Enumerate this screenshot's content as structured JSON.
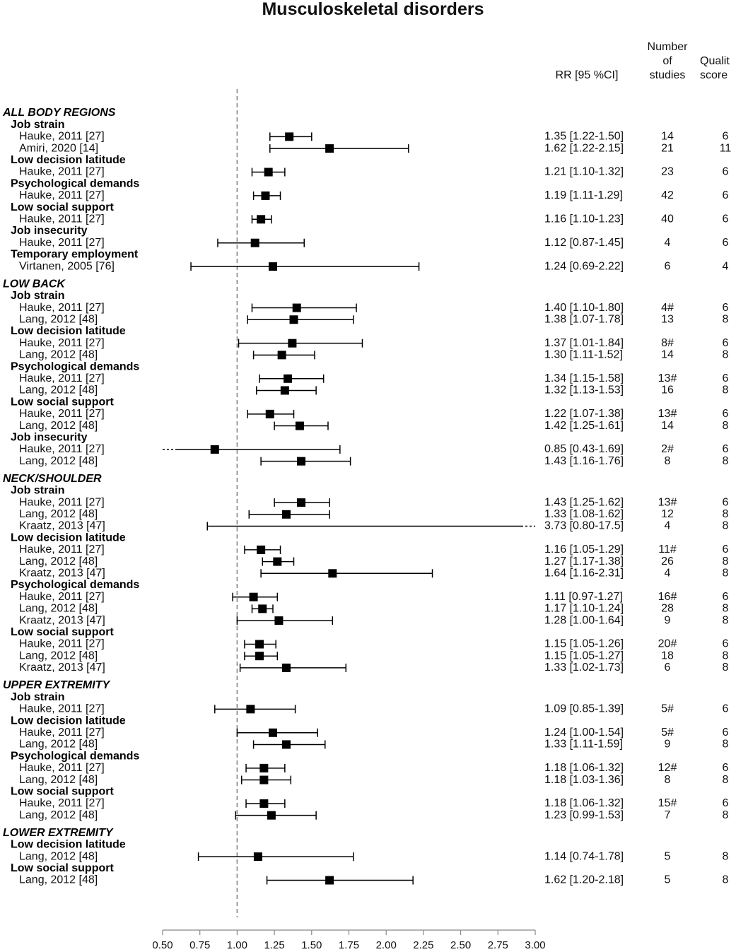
{
  "chart_data": {
    "type": "forest",
    "title": "Musculoskeletal disorders",
    "column_headers": {
      "rr": "RR [95 %CI]",
      "studies": [
        "Number",
        "of",
        "studies"
      ],
      "quality": [
        "Qualit",
        "score"
      ]
    },
    "reference_line": 1.0,
    "xlim": [
      0.5,
      3.0
    ],
    "x_ticks": [
      "0.50",
      "0.75",
      "1.00",
      "1.25",
      "1.50",
      "1.75",
      "2.00",
      "2.25",
      "2.50",
      "2.75",
      "3.00"
    ],
    "rows": [
      {
        "kind": "section",
        "label": "ALL BODY REGIONS"
      },
      {
        "kind": "group",
        "label": "Job strain"
      },
      {
        "kind": "study",
        "label": "Hauke, 2011 [27]",
        "rr": 1.35,
        "lo": 1.22,
        "hi": 1.5,
        "ci_text": "1.35 [1.22-1.50]",
        "n": "14",
        "q": "6"
      },
      {
        "kind": "study",
        "label": "Amiri, 2020 [14]",
        "rr": 1.62,
        "lo": 1.22,
        "hi": 2.15,
        "ci_text": "1.62 [1.22-2.15]",
        "n": "21",
        "q": "11"
      },
      {
        "kind": "group",
        "label": "Low decision latitude"
      },
      {
        "kind": "study",
        "label": "Hauke, 2011 [27]",
        "rr": 1.21,
        "lo": 1.1,
        "hi": 1.32,
        "ci_text": "1.21 [1.10-1.32]",
        "n": "23",
        "q": "6"
      },
      {
        "kind": "group",
        "label": "Psychological demands"
      },
      {
        "kind": "study",
        "label": "Hauke, 2011 [27]",
        "rr": 1.19,
        "lo": 1.11,
        "hi": 1.29,
        "ci_text": "1.19 [1.11-1.29]",
        "n": "42",
        "q": "6"
      },
      {
        "kind": "group",
        "label": "Low social support"
      },
      {
        "kind": "study",
        "label": "Hauke, 2011 [27]",
        "rr": 1.16,
        "lo": 1.1,
        "hi": 1.23,
        "ci_text": "1.16 [1.10-1.23]",
        "n": "40",
        "q": "6"
      },
      {
        "kind": "group",
        "label": "Job insecurity"
      },
      {
        "kind": "study",
        "label": "Hauke, 2011 [27]",
        "rr": 1.12,
        "lo": 0.87,
        "hi": 1.45,
        "ci_text": "1.12 [0.87-1.45]",
        "n": "4",
        "q": "6"
      },
      {
        "kind": "group",
        "label": "Temporary employment"
      },
      {
        "kind": "study",
        "label": "Virtanen, 2005 [76]",
        "rr": 1.24,
        "lo": 0.69,
        "hi": 2.22,
        "ci_text": "1.24 [0.69-2.22]",
        "n": "6",
        "q": "4"
      },
      {
        "kind": "section",
        "label": "LOW BACK"
      },
      {
        "kind": "group",
        "label": "Job strain"
      },
      {
        "kind": "study",
        "label": "Hauke, 2011 [27]",
        "rr": 1.4,
        "lo": 1.1,
        "hi": 1.8,
        "ci_text": "1.40 [1.10-1.80]",
        "n": "4#",
        "q": "6"
      },
      {
        "kind": "study",
        "label": "Lang, 2012 [48]",
        "rr": 1.38,
        "lo": 1.07,
        "hi": 1.78,
        "ci_text": "1.38 [1.07-1.78]",
        "n": "13",
        "q": "8"
      },
      {
        "kind": "group",
        "label": "Low decision latitude"
      },
      {
        "kind": "study",
        "label": "Hauke, 2011 [27]",
        "rr": 1.37,
        "lo": 1.01,
        "hi": 1.84,
        "ci_text": "1.37 [1.01-1.84]",
        "n": "8#",
        "q": "6"
      },
      {
        "kind": "study",
        "label": "Lang, 2012 [48]",
        "rr": 1.3,
        "lo": 1.11,
        "hi": 1.52,
        "ci_text": "1.30 [1.11-1.52]",
        "n": "14",
        "q": "8"
      },
      {
        "kind": "group",
        "label": "Psychological demands"
      },
      {
        "kind": "study",
        "label": "Hauke, 2011 [27]",
        "rr": 1.34,
        "lo": 1.15,
        "hi": 1.58,
        "ci_text": "1.34 [1.15-1.58]",
        "n": "13#",
        "q": "6"
      },
      {
        "kind": "study",
        "label": "Lang, 2012 [48]",
        "rr": 1.32,
        "lo": 1.13,
        "hi": 1.53,
        "ci_text": "1.32 [1.13-1.53]",
        "n": "16",
        "q": "8"
      },
      {
        "kind": "group",
        "label": "Low social support"
      },
      {
        "kind": "study",
        "label": "Hauke, 2011 [27]",
        "rr": 1.22,
        "lo": 1.07,
        "hi": 1.38,
        "ci_text": "1.22 [1.07-1.38]",
        "n": "13#",
        "q": "6"
      },
      {
        "kind": "study",
        "label": "Lang, 2012 [48]",
        "rr": 1.42,
        "lo": 1.25,
        "hi": 1.61,
        "ci_text": "1.42 [1.25-1.61]",
        "n": "14",
        "q": "8"
      },
      {
        "kind": "group",
        "label": "Job insecurity"
      },
      {
        "kind": "study",
        "label": "Hauke, 2011 [27]",
        "rr": 0.85,
        "lo": 0.43,
        "hi": 1.69,
        "ci_text": "0.85 [0.43-1.69]",
        "n": "2#",
        "q": "6"
      },
      {
        "kind": "study",
        "label": "Lang, 2012 [48]",
        "rr": 1.43,
        "lo": 1.16,
        "hi": 1.76,
        "ci_text": "1.43 [1.16-1.76]",
        "n": "8",
        "q": "8"
      },
      {
        "kind": "section",
        "label": "NECK/SHOULDER"
      },
      {
        "kind": "group",
        "label": "Job strain"
      },
      {
        "kind": "study",
        "label": "Hauke, 2011 [27]",
        "rr": 1.43,
        "lo": 1.25,
        "hi": 1.62,
        "ci_text": "1.43 [1.25-1.62]",
        "n": "13#",
        "q": "6"
      },
      {
        "kind": "study",
        "label": "Lang, 2012 [48]",
        "rr": 1.33,
        "lo": 1.08,
        "hi": 1.62,
        "ci_text": "1.33 [1.08-1.62]",
        "n": "12",
        "q": "8"
      },
      {
        "kind": "study",
        "label": "Kraatz, 2013 [47]",
        "rr": 3.73,
        "lo": 0.8,
        "hi": 17.5,
        "ci_text": "3.73 [0.80-17.5]",
        "n": "4",
        "q": "8"
      },
      {
        "kind": "group",
        "label": "Low decision latitude"
      },
      {
        "kind": "study",
        "label": "Hauke, 2011 [27]",
        "rr": 1.16,
        "lo": 1.05,
        "hi": 1.29,
        "ci_text": "1.16 [1.05-1.29]",
        "n": "11#",
        "q": "6"
      },
      {
        "kind": "study",
        "label": "Lang, 2012 [48]",
        "rr": 1.27,
        "lo": 1.17,
        "hi": 1.38,
        "ci_text": "1.27 [1.17-1.38]",
        "n": "26",
        "q": "8"
      },
      {
        "kind": "study",
        "label": "Kraatz, 2013 [47]",
        "rr": 1.64,
        "lo": 1.16,
        "hi": 2.31,
        "ci_text": "1.64 [1.16-2.31]",
        "n": "4",
        "q": "8"
      },
      {
        "kind": "group",
        "label": "Psychological demands"
      },
      {
        "kind": "study",
        "label": "Hauke, 2011 [27]",
        "rr": 1.11,
        "lo": 0.97,
        "hi": 1.27,
        "ci_text": "1.11 [0.97-1.27]",
        "n": "16#",
        "q": "6"
      },
      {
        "kind": "study",
        "label": "Lang, 2012 [48]",
        "rr": 1.17,
        "lo": 1.1,
        "hi": 1.24,
        "ci_text": "1.17 [1.10-1.24]",
        "n": "28",
        "q": "8"
      },
      {
        "kind": "study",
        "label": "Kraatz, 2013 [47]",
        "rr": 1.28,
        "lo": 1.0,
        "hi": 1.64,
        "ci_text": "1.28 [1.00-1.64]",
        "n": "9",
        "q": "8"
      },
      {
        "kind": "group",
        "label": "Low social support"
      },
      {
        "kind": "study",
        "label": "Hauke, 2011 [27]",
        "rr": 1.15,
        "lo": 1.05,
        "hi": 1.26,
        "ci_text": "1.15 [1.05-1.26]",
        "n": "20#",
        "q": "6"
      },
      {
        "kind": "study",
        "label": "Lang, 2012 [48]",
        "rr": 1.15,
        "lo": 1.05,
        "hi": 1.27,
        "ci_text": "1.15 [1.05-1.27]",
        "n": "18",
        "q": "8"
      },
      {
        "kind": "study",
        "label": "Kraatz, 2013 [47]",
        "rr": 1.33,
        "lo": 1.02,
        "hi": 1.73,
        "ci_text": "1.33 [1.02-1.73]",
        "n": "6",
        "q": "8"
      },
      {
        "kind": "section",
        "label": "UPPER EXTREMITY"
      },
      {
        "kind": "group",
        "label": "Job strain"
      },
      {
        "kind": "study",
        "label": "Hauke, 2011 [27]",
        "rr": 1.09,
        "lo": 0.85,
        "hi": 1.39,
        "ci_text": "1.09 [0.85-1.39]",
        "n": "5#",
        "q": "6"
      },
      {
        "kind": "group",
        "label": "Low decision latitude"
      },
      {
        "kind": "study",
        "label": "Hauke, 2011 [27]",
        "rr": 1.24,
        "lo": 1.0,
        "hi": 1.54,
        "ci_text": "1.24 [1.00-1.54]",
        "n": "5#",
        "q": "6"
      },
      {
        "kind": "study",
        "label": "Lang, 2012 [48]",
        "rr": 1.33,
        "lo": 1.11,
        "hi": 1.59,
        "ci_text": "1.33 [1.11-1.59]",
        "n": "9",
        "q": "8"
      },
      {
        "kind": "group",
        "label": "Psychological demands"
      },
      {
        "kind": "study",
        "label": "Hauke, 2011 [27]",
        "rr": 1.18,
        "lo": 1.06,
        "hi": 1.32,
        "ci_text": "1.18 [1.06-1.32]",
        "n": "12#",
        "q": "6"
      },
      {
        "kind": "study",
        "label": "Lang, 2012 [48]",
        "rr": 1.18,
        "lo": 1.03,
        "hi": 1.36,
        "ci_text": "1.18 [1.03-1.36]",
        "n": "8",
        "q": "8"
      },
      {
        "kind": "group",
        "label": "Low social support"
      },
      {
        "kind": "study",
        "label": "Hauke, 2011 [27]",
        "rr": 1.18,
        "lo": 1.06,
        "hi": 1.32,
        "ci_text": "1.18 [1.06-1.32]",
        "n": "15#",
        "q": "6"
      },
      {
        "kind": "study",
        "label": "Lang, 2012 [48]",
        "rr": 1.23,
        "lo": 0.99,
        "hi": 1.53,
        "ci_text": "1.23 [0.99-1.53]",
        "n": "7",
        "q": "8"
      },
      {
        "kind": "section",
        "label": "LOWER EXTREMITY"
      },
      {
        "kind": "group",
        "label": "Low decision latitude"
      },
      {
        "kind": "study",
        "label": "Lang, 2012 [48]",
        "rr": 1.14,
        "lo": 0.74,
        "hi": 1.78,
        "ci_text": "1.14 [0.74-1.78]",
        "n": "5",
        "q": "8"
      },
      {
        "kind": "group",
        "label": "Low social support"
      },
      {
        "kind": "study",
        "label": "Lang, 2012 [48]",
        "rr": 1.62,
        "lo": 1.2,
        "hi": 2.18,
        "ci_text": "1.62 [1.20-2.18]",
        "n": "5",
        "q": "8"
      }
    ]
  }
}
